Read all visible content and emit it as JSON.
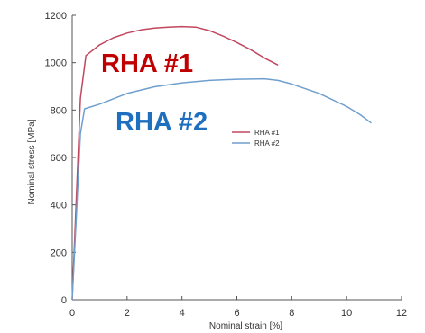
{
  "chart_data": {
    "type": "line",
    "title": "",
    "xlabel": "Nominal strain [%]",
    "ylabel": "Nominal stress [MPa]",
    "xlim": [
      0,
      12
    ],
    "ylim": [
      0,
      1200
    ],
    "xticks": [
      0,
      2,
      4,
      6,
      8,
      10,
      12
    ],
    "yticks": [
      0,
      200,
      400,
      600,
      800,
      1000,
      1200
    ],
    "grid": false,
    "legend_position": "center-right",
    "series": [
      {
        "name": "RHA #1",
        "color": "#c0475f",
        "label_color": "#c00000",
        "points": [
          [
            0,
            0
          ],
          [
            0.3,
            850
          ],
          [
            0.5,
            1030
          ],
          [
            1.0,
            1075
          ],
          [
            1.5,
            1105
          ],
          [
            2.0,
            1125
          ],
          [
            2.5,
            1138
          ],
          [
            3.0,
            1146
          ],
          [
            3.5,
            1150
          ],
          [
            4.0,
            1152
          ],
          [
            4.5,
            1150
          ],
          [
            5.0,
            1135
          ],
          [
            5.5,
            1112
          ],
          [
            6.0,
            1085
          ],
          [
            6.5,
            1055
          ],
          [
            7.0,
            1020
          ],
          [
            7.5,
            990
          ]
        ]
      },
      {
        "name": "RHA #2",
        "color": "#6f9fce",
        "label_color": "#1f6fbf",
        "points": [
          [
            0,
            0
          ],
          [
            0.3,
            700
          ],
          [
            0.45,
            805
          ],
          [
            1.0,
            825
          ],
          [
            2.0,
            870
          ],
          [
            3.0,
            898
          ],
          [
            4.0,
            915
          ],
          [
            5.0,
            925
          ],
          [
            6.0,
            930
          ],
          [
            7.0,
            932
          ],
          [
            7.5,
            925
          ],
          [
            8.0,
            910
          ],
          [
            9.0,
            870
          ],
          [
            10.0,
            815
          ],
          [
            10.5,
            780
          ],
          [
            10.9,
            745
          ]
        ]
      }
    ]
  }
}
